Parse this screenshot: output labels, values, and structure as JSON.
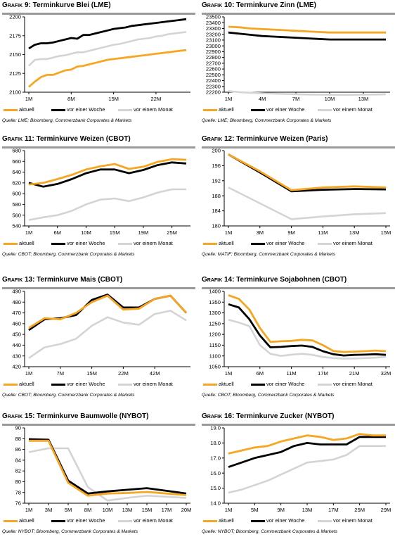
{
  "colors": {
    "aktuell": "#f5a623",
    "vor_einer_woche": "#000000",
    "vor_einem_monat": "#d4d4d4",
    "title_rule": "#9a9a9a"
  },
  "panels": [
    {
      "id": "g9",
      "title_prefix": "Grafik 9:",
      "title_main": " Terminkurve Blei (LME)",
      "source": "Quelle: LME; Bloomberg, Commerzbank Corporates & Markets",
      "legend": {
        "s1": "aktuell",
        "s2": "vor einer Woche",
        "s3": "vor einem Monat"
      },
      "chart_data": {
        "type": "line",
        "ylim": [
          2100,
          2200
        ],
        "yticks": [
          2100,
          2125,
          2150,
          2175,
          2200
        ],
        "xticks": [
          "1M",
          "8M",
          "15M",
          "22M"
        ],
        "xtick_idx": [
          0,
          7,
          14,
          21
        ],
        "series": [
          {
            "name": "aktuell",
            "values": [
              2107,
              2114,
              2120,
              2123,
              2123,
              2126,
              2129,
              2130,
              2134,
              2135,
              2137,
              2139,
              2141,
              2143,
              2144,
              2145,
              2146,
              2147,
              2148,
              2149,
              2150,
              2151,
              2152,
              2153,
              2154,
              2155,
              2156
            ]
          },
          {
            "name": "vor einer Woche",
            "values": [
              2158,
              2163,
              2165,
              2165,
              2166,
              2168,
              2170,
              2172,
              2171,
              2176,
              2176,
              2178,
              2180,
              2182,
              2184,
              2185,
              2186,
              2188,
              2189,
              2190,
              2191,
              2192,
              2193,
              2194,
              2195,
              2196,
              2197
            ]
          },
          {
            "name": "vor einem Monat",
            "values": [
              2135,
              2143,
              2144,
              2144,
              2146,
              2148,
              2149,
              2151,
              2153,
              2153,
              2155,
              2157,
              2159,
              2161,
              2163,
              2164,
              2166,
              2168,
              2170,
              2171,
              2172,
              2174,
              2175,
              2177,
              2178,
              2179,
              2180
            ]
          }
        ]
      }
    },
    {
      "id": "g10",
      "title_prefix": "Grafik 10:",
      "title_main": " Terminkurve Zinn (LME)",
      "source": "Quelle: LME; Bloomberg, Commerzbank Corporates & Markets",
      "legend": {
        "s1": "aktuell",
        "s2": "vor einer Woche",
        "s3": "vor einem Monat"
      },
      "chart_data": {
        "type": "line",
        "ylim": [
          22200,
          23500
        ],
        "yticks": [
          22200,
          22300,
          22400,
          22500,
          22600,
          22700,
          22800,
          22900,
          23000,
          23100,
          23200,
          23300,
          23400,
          23500
        ],
        "xticks": [
          "1M",
          "4M",
          "7M",
          "10M",
          "13M"
        ],
        "xtick_idx": [
          0,
          3,
          6,
          9,
          12
        ],
        "series": [
          {
            "name": "aktuell",
            "values": [
              23330,
              23320,
              23300,
              23290,
              23280,
              23270,
              23260,
              23250,
              23240,
              23230,
              23230,
              23230,
              23230,
              23230,
              23230
            ]
          },
          {
            "name": "vor einer Woche",
            "values": [
              23230,
              23210,
              23190,
              23170,
              23160,
              23150,
              23140,
              23130,
              23120,
              23110,
              23110,
              23110,
              23110,
              23110,
              23110
            ]
          },
          {
            "name": "vor einem Monat",
            "values": [
              22220,
              22200,
              22190,
              22180,
              22175,
              22170,
              22165,
              22160,
              22158,
              22156,
              22155,
              22155,
              22158,
              22160,
              22165
            ]
          }
        ]
      }
    },
    {
      "id": "g11",
      "title_prefix": "Grafik 11:",
      "title_main": " Terminkurve Weizen (CBOT)",
      "source": "Quelle: CBOT; Bloomberg, Commerzbank Corporates & Markets",
      "legend": {
        "s1": "aktuell",
        "s2": "vor einer Woche",
        "s3": "vor einem Monat"
      },
      "chart_data": {
        "type": "line",
        "ylim": [
          540,
          680
        ],
        "yticks": [
          540,
          560,
          580,
          600,
          620,
          640,
          660,
          680
        ],
        "xticks": [
          "1M",
          "6M",
          "10M",
          "15M",
          "19M",
          "25M"
        ],
        "xtick_idx": [
          0,
          2,
          4,
          6,
          8,
          10
        ],
        "series": [
          {
            "name": "aktuell",
            "values": [
              617,
              620,
              627,
              635,
              645,
              651,
              655,
              646,
              650,
              659,
              664,
              663
            ]
          },
          {
            "name": "vor einer Woche",
            "values": [
              620,
              613,
              618,
              627,
              638,
              645,
              645,
              638,
              644,
              653,
              658,
              656
            ]
          },
          {
            "name": "vor einem Monat",
            "values": [
              551,
              556,
              560,
              568,
              580,
              589,
              591,
              586,
              593,
              602,
              608,
              608
            ]
          }
        ]
      }
    },
    {
      "id": "g12",
      "title_prefix": "Grafik 12:",
      "title_main": " Terminkurve Weizen (Paris)",
      "source": "Quelle: MATIF; Bloomberg, Commerzbank Corporates & Markets",
      "legend": {
        "s1": "aktuell",
        "s2": "vor einer Woche",
        "s3": "vor einem Monat"
      },
      "chart_data": {
        "type": "line",
        "ylim": [
          180,
          200
        ],
        "yticks": [
          180,
          184,
          188,
          192,
          196,
          200
        ],
        "xticks": [
          "1M",
          "3M",
          "9M",
          "11M",
          "13M",
          "15M"
        ],
        "xtick_idx": [
          0,
          1,
          2,
          3,
          4,
          5
        ],
        "series": [
          {
            "name": "aktuell",
            "values": [
              199.0,
              194.5,
              189.5,
              190.2,
              190.5,
              190.2
            ]
          },
          {
            "name": "vor einer Woche",
            "values": [
              199.0,
              194.2,
              189.2,
              189.6,
              189.8,
              189.7
            ]
          },
          {
            "name": "vor einem Monat",
            "values": [
              190.2,
              186.0,
              181.8,
              182.5,
              183.1,
              183.4
            ]
          }
        ]
      }
    },
    {
      "id": "g13",
      "title_prefix": "Grafik 13:",
      "title_main": "  Terminkurve Mais (CBOT)",
      "source": "Quelle: CBOT; Bloomberg, Commerzbank Corporates & Markets",
      "legend": {
        "s1": "aktuell",
        "s2": "vor einer Woche",
        "s3": "vor einem Monat"
      },
      "chart_data": {
        "type": "line",
        "ylim": [
          420,
          490
        ],
        "yticks": [
          420,
          430,
          440,
          450,
          460,
          470,
          480,
          490
        ],
        "xticks": [
          "1M",
          "7M",
          "15M",
          "22M",
          "42M"
        ],
        "xtick_idx": [
          0,
          2,
          4,
          6,
          8
        ],
        "series": [
          {
            "name": "aktuell",
            "values": [
              456,
              465,
              464,
              470,
              480,
              486,
              473,
              474,
              483,
              486,
              470
            ]
          },
          {
            "name": "vor einer Woche",
            "values": [
              454,
              464,
              465,
              468,
              482,
              487,
              475,
              475,
              483,
              486,
              470
            ]
          },
          {
            "name": "vor einem Monat",
            "values": [
              428,
              438,
              441,
              446,
              458,
              466,
              461,
              459,
              469,
              472,
              463
            ]
          }
        ]
      }
    },
    {
      "id": "g14",
      "title_prefix": "Grafik 14:",
      "title_main": " Terminkurve Sojabohnen (CBOT)",
      "source": "Quelle: CBOT; Bloomberg, Commerzbank Corporates & Markets",
      "legend": {
        "s1": "aktuell",
        "s2": "vor einer Woche",
        "s3": "vor einem Monat"
      },
      "chart_data": {
        "type": "line",
        "ylim": [
          1050,
          1400
        ],
        "yticks": [
          1050,
          1100,
          1150,
          1200,
          1250,
          1300,
          1350,
          1400
        ],
        "xticks": [
          "1M",
          "6M",
          "11M",
          "17M",
          "21M",
          "32M"
        ],
        "xtick_idx": [
          0,
          3,
          6,
          9,
          12,
          15
        ],
        "series": [
          {
            "name": "aktuell",
            "values": [
              1382,
              1365,
              1315,
              1230,
              1165,
              1168,
              1170,
              1175,
              1172,
              1150,
              1123,
              1118,
              1120,
              1122,
              1125,
              1122
            ]
          },
          {
            "name": "vor einer Woche",
            "values": [
              1340,
              1325,
              1270,
              1195,
              1140,
              1142,
              1146,
              1148,
              1142,
              1122,
              1108,
              1102,
              1105,
              1106,
              1108,
              1105
            ]
          },
          {
            "name": "vor einem Monat",
            "values": [
              1268,
              1255,
              1238,
              1150,
              1110,
              1100,
              1106,
              1110,
              1105,
              1095,
              1090,
              1088,
              1088,
              1090,
              1092,
              1095
            ]
          }
        ]
      }
    },
    {
      "id": "g15",
      "title_prefix": "Grafik 15:",
      "title_main": " Terminkurve Baumwolle (NYBOT)",
      "source": "Quelle: NYBOT; Bloomberg, Commerzbank Corporates & Markets",
      "legend": {
        "s1": "aktuell",
        "s2": "vor einer Woche",
        "s3": "vor einem Monat"
      },
      "chart_data": {
        "type": "line",
        "ylim": [
          76,
          90
        ],
        "yticks": [
          76,
          78,
          80,
          82,
          84,
          86,
          88,
          90
        ],
        "xticks": [
          "1M",
          "3M",
          "5M",
          "8M",
          "10M",
          "13M",
          "15M",
          "17M",
          "20M"
        ],
        "xtick_idx": [
          0,
          1,
          2,
          3,
          4,
          5,
          6,
          7,
          8
        ],
        "series": [
          {
            "name": "aktuell",
            "values": [
              87.6,
              87.6,
              79.8,
              77.4,
              77.8,
              77.9,
              78.1,
              77.8,
              77.5
            ]
          },
          {
            "name": "vor einer Woche",
            "values": [
              87.9,
              87.8,
              80.2,
              77.8,
              78.2,
              78.5,
              78.8,
              78.3,
              77.8
            ]
          },
          {
            "name": "vor einem Monat",
            "values": [
              85.5,
              86.2,
              86.2,
              79.0,
              76.5,
              77.0,
              77.4,
              77.2,
              77.0
            ]
          }
        ]
      }
    },
    {
      "id": "g16",
      "title_prefix": "Grafik 16:",
      "title_main": " Terminkurve Zucker (NYBOT)",
      "source": "Quelle: NYBOT; Bloomberg, Commerzbank Corporates & Markets",
      "legend": {
        "s1": "aktuell",
        "s2": "vor einer Woche",
        "s3": "vor einem Monat"
      },
      "chart_data": {
        "type": "line",
        "ylim": [
          14.0,
          19.0
        ],
        "yticks": [
          14.0,
          15.0,
          16.0,
          17.0,
          18.0,
          19.0
        ],
        "xticks": [
          "1M",
          "5M",
          "9M",
          "13M",
          "17M",
          "25M",
          "29M"
        ],
        "xtick_idx": [
          0,
          2,
          4,
          6,
          8,
          10,
          12
        ],
        "series": [
          {
            "name": "aktuell",
            "values": [
              17.3,
              17.5,
              17.7,
              17.8,
              18.1,
              18.3,
              18.5,
              18.4,
              18.2,
              18.3,
              18.6,
              18.5,
              18.5
            ]
          },
          {
            "name": "vor einer Woche",
            "values": [
              16.4,
              16.7,
              17.0,
              17.2,
              17.4,
              17.8,
              18.0,
              17.9,
              17.9,
              17.9,
              18.4,
              18.4,
              18.4
            ]
          },
          {
            "name": "vor einem Monat",
            "values": [
              14.7,
              14.9,
              15.2,
              15.5,
              15.9,
              16.3,
              16.7,
              16.8,
              16.9,
              17.2,
              17.8,
              17.8,
              17.8
            ]
          }
        ]
      }
    }
  ]
}
